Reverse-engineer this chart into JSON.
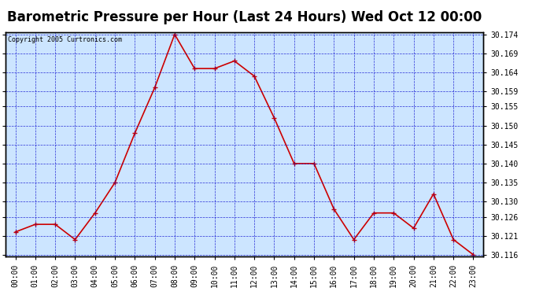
{
  "title": "Barometric Pressure per Hour (Last 24 Hours) Wed Oct 12 00:00",
  "copyright": "Copyright 2005 Curtronics.com",
  "hours": [
    "00:00",
    "01:00",
    "02:00",
    "03:00",
    "04:00",
    "05:00",
    "06:00",
    "07:00",
    "08:00",
    "09:00",
    "10:00",
    "11:00",
    "12:00",
    "13:00",
    "14:00",
    "15:00",
    "16:00",
    "17:00",
    "18:00",
    "19:00",
    "20:00",
    "21:00",
    "22:00",
    "23:00"
  ],
  "values": [
    30.122,
    30.124,
    30.124,
    30.12,
    30.127,
    30.135,
    30.148,
    30.16,
    30.174,
    30.165,
    30.165,
    30.167,
    30.163,
    30.152,
    30.14,
    30.14,
    30.128,
    30.12,
    30.127,
    30.127,
    30.123,
    30.132,
    30.12,
    30.116
  ],
  "ylim_min": 30.116,
  "ylim_max": 30.174,
  "yticks": [
    30.116,
    30.121,
    30.126,
    30.13,
    30.135,
    30.14,
    30.145,
    30.15,
    30.155,
    30.159,
    30.164,
    30.169,
    30.174
  ],
  "line_color": "#cc0000",
  "marker_color": "#cc0000",
  "bg_color": "#cce5ff",
  "grid_color": "#0000cc",
  "title_fontsize": 12,
  "copyright_fontsize": 6,
  "tick_fontsize": 7,
  "border_color": "#000000",
  "white": "#ffffff"
}
